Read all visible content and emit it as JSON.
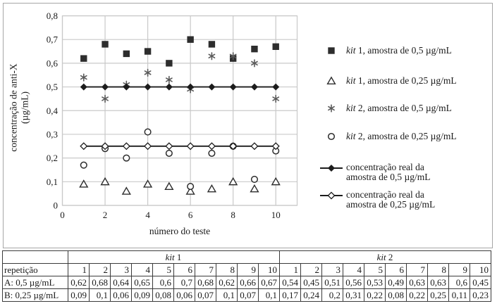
{
  "chart_data": {
    "type": "scatter",
    "title": "",
    "xlabel": "número do teste",
    "ylabel": "concentração de anti-X (µg/mL)",
    "ylabel_line1": "concentração de anti-X",
    "ylabel_line2": "(µg/mL)",
    "xlim": [
      0,
      11
    ],
    "ylim": [
      0,
      0.8
    ],
    "grid": true,
    "legend_position": "right",
    "x": [
      1,
      2,
      3,
      4,
      5,
      6,
      7,
      8,
      9,
      10
    ],
    "x_ticks": [
      {
        "v": 0,
        "label": "0"
      },
      {
        "v": 2,
        "label": "2"
      },
      {
        "v": 4,
        "label": "4"
      },
      {
        "v": 6,
        "label": "6"
      },
      {
        "v": 8,
        "label": "8"
      },
      {
        "v": 10,
        "label": "10"
      }
    ],
    "y_ticks": [
      {
        "v": 0,
        "label": "0"
      },
      {
        "v": 0.1,
        "label": "0,1"
      },
      {
        "v": 0.2,
        "label": "0,2"
      },
      {
        "v": 0.3,
        "label": "0,3"
      },
      {
        "v": 0.4,
        "label": "0,4"
      },
      {
        "v": 0.5,
        "label": "0,5"
      },
      {
        "v": 0.6,
        "label": "0,6"
      },
      {
        "v": 0.7,
        "label": "0,7"
      },
      {
        "v": 0.8,
        "label": "0,8"
      }
    ],
    "series": [
      {
        "name": "kit 1, amostra de 0,5 µg/mL",
        "marker": "filled-square",
        "line": false,
        "values": [
          0.62,
          0.68,
          0.64,
          0.65,
          0.6,
          0.7,
          0.68,
          0.62,
          0.66,
          0.67
        ]
      },
      {
        "name": "kit 1, amostra de 0,25 µg/mL",
        "marker": "open-triangle",
        "line": false,
        "values": [
          0.09,
          0.1,
          0.06,
          0.09,
          0.08,
          0.06,
          0.07,
          0.1,
          0.07,
          0.1
        ]
      },
      {
        "name": "kit 2, amostra de 0,5 µg/mL",
        "marker": "asterisk",
        "line": false,
        "values": [
          0.54,
          0.45,
          0.51,
          0.56,
          0.53,
          0.49,
          0.63,
          0.63,
          0.6,
          0.45
        ]
      },
      {
        "name": "kit 2, amostra de 0,25 µg/mL",
        "marker": "open-circle",
        "line": false,
        "values": [
          0.17,
          0.24,
          0.2,
          0.31,
          0.22,
          0.08,
          0.22,
          0.25,
          0.11,
          0.23
        ]
      },
      {
        "name": "concentração real da amostra de 0,5 µg/mL",
        "marker": "filled-diamond",
        "line": true,
        "values": [
          0.5,
          0.5,
          0.5,
          0.5,
          0.5,
          0.5,
          0.5,
          0.5,
          0.5,
          0.5
        ]
      },
      {
        "name": "concentração real da amostra de 0,25 µg/mL",
        "marker": "open-diamond",
        "line": true,
        "values": [
          0.25,
          0.25,
          0.25,
          0.25,
          0.25,
          0.25,
          0.25,
          0.25,
          0.25,
          0.25
        ]
      }
    ]
  },
  "legend": {
    "items": [
      {
        "marker": "filled-square",
        "italic": "kit",
        "rest": " 1, amostra de 0,5 µg/mL"
      },
      {
        "marker": "open-triangle",
        "italic": "kit",
        "rest": " 1, amostra de 0,25 µg/mL"
      },
      {
        "marker": "asterisk",
        "italic": "kit",
        "rest": " 2, amostra de 0,5 µg/mL"
      },
      {
        "marker": "open-circle",
        "italic": "kit",
        "rest": " 2, amostra de 0,25 µg/mL"
      },
      {
        "marker": "line-filled-diamond",
        "lines": [
          "concentração real da",
          "amostra de 0,5 µg/mL"
        ]
      },
      {
        "marker": "line-open-diamond",
        "lines": [
          "concentração real da",
          "amostra de 0,25 µg/mL"
        ]
      }
    ]
  },
  "table": {
    "row_header": "repetição",
    "groups": [
      {
        "italic": "kit",
        "rest": " 1"
      },
      {
        "italic": "kit",
        "rest": " 2"
      }
    ],
    "repetitions": [
      "1",
      "2",
      "3",
      "4",
      "5",
      "6",
      "7",
      "8",
      "9",
      "10",
      "1",
      "2",
      "3",
      "4",
      "5",
      "6",
      "7",
      "8",
      "9",
      "10"
    ],
    "rows": [
      {
        "label": "A: 0,5 µg/mL",
        "values": [
          "0,62",
          "0,68",
          "0,64",
          "0,65",
          "0,6",
          "0,7",
          "0,68",
          "0,62",
          "0,66",
          "0,67",
          "0,54",
          "0,45",
          "0,51",
          "0,56",
          "0,53",
          "0,49",
          "0,63",
          "0,63",
          "0,6",
          "0,45"
        ]
      },
      {
        "label": "B: 0,25 µg/mL",
        "values": [
          "0,09",
          "0,1",
          "0,06",
          "0,09",
          "0,08",
          "0,06",
          "0,07",
          "0,1",
          "0,07",
          "0,1",
          "0,17",
          "0,24",
          "0,2",
          "0,31",
          "0,22",
          "0,08",
          "0,22",
          "0,25",
          "0,11",
          "0,23"
        ]
      }
    ]
  },
  "colors": {
    "marker_dark": "#2d2d2d",
    "asterisk_gray": "#5a5a5a",
    "line_black": "#1c1c1c",
    "gridline": "#c9c9c9",
    "figure_border": "#a6a6a6",
    "table_border": "#3a3a3a",
    "text": "#1a1a1a"
  }
}
